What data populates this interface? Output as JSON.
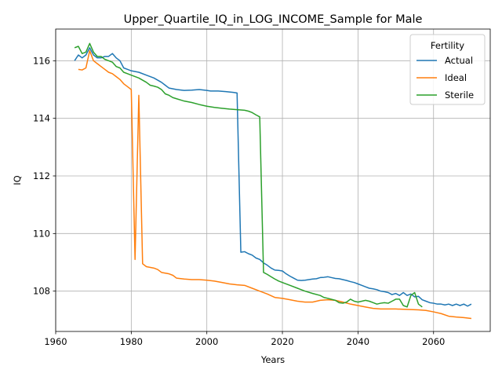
{
  "chart_data": {
    "type": "line",
    "title": "Upper_Quartile_IQ_in_LOG_INCOME_Sample for Male",
    "xlabel": "Years",
    "ylabel": "IQ",
    "xlim": [
      1960,
      2075
    ],
    "ylim": [
      106.6,
      117.1
    ],
    "xticks": [
      1960,
      1980,
      2000,
      2020,
      2040,
      2060
    ],
    "yticks": [
      108,
      110,
      112,
      114,
      116
    ],
    "grid": true,
    "legend": {
      "title": "Fertility",
      "placement": "top-right"
    },
    "series": [
      {
        "name": "Actual",
        "color": "#1f77b4",
        "points": [
          [
            1965,
            116.0
          ],
          [
            1966,
            116.2
          ],
          [
            1967,
            116.1
          ],
          [
            1968,
            116.2
          ],
          [
            1969,
            116.45
          ],
          [
            1970,
            116.2
          ],
          [
            1971,
            116.1
          ],
          [
            1972,
            116.1
          ],
          [
            1973,
            116.15
          ],
          [
            1974,
            116.15
          ],
          [
            1975,
            116.25
          ],
          [
            1976,
            116.1
          ],
          [
            1977,
            116.0
          ],
          [
            1978,
            115.75
          ],
          [
            1979,
            115.7
          ],
          [
            1980,
            115.65
          ],
          [
            1982,
            115.6
          ],
          [
            1984,
            115.5
          ],
          [
            1986,
            115.4
          ],
          [
            1988,
            115.25
          ],
          [
            1989,
            115.15
          ],
          [
            1990,
            115.05
          ],
          [
            1992,
            115.0
          ],
          [
            1994,
            114.97
          ],
          [
            1996,
            114.98
          ],
          [
            1998,
            115.0
          ],
          [
            2000,
            114.97
          ],
          [
            2001,
            114.95
          ],
          [
            2003,
            114.95
          ],
          [
            2005,
            114.93
          ],
          [
            2007,
            114.9
          ],
          [
            2008,
            114.88
          ],
          [
            2009,
            109.35
          ],
          [
            2010,
            109.37
          ],
          [
            2011,
            109.3
          ],
          [
            2012,
            109.25
          ],
          [
            2013,
            109.15
          ],
          [
            2014,
            109.1
          ],
          [
            2015,
            108.98
          ],
          [
            2016,
            108.9
          ],
          [
            2017,
            108.8
          ],
          [
            2018,
            108.73
          ],
          [
            2019,
            108.72
          ],
          [
            2020,
            108.7
          ],
          [
            2021,
            108.6
          ],
          [
            2022,
            108.52
          ],
          [
            2023,
            108.45
          ],
          [
            2024,
            108.38
          ],
          [
            2025,
            108.37
          ],
          [
            2026,
            108.38
          ],
          [
            2027,
            108.4
          ],
          [
            2028,
            108.42
          ],
          [
            2029,
            108.43
          ],
          [
            2030,
            108.47
          ],
          [
            2031,
            108.48
          ],
          [
            2032,
            108.5
          ],
          [
            2033,
            108.47
          ],
          [
            2034,
            108.44
          ],
          [
            2035,
            108.43
          ],
          [
            2036,
            108.4
          ],
          [
            2037,
            108.37
          ],
          [
            2038,
            108.33
          ],
          [
            2039,
            108.3
          ],
          [
            2040,
            108.25
          ],
          [
            2041,
            108.2
          ],
          [
            2042,
            108.15
          ],
          [
            2043,
            108.1
          ],
          [
            2044,
            108.08
          ],
          [
            2045,
            108.05
          ],
          [
            2046,
            108.0
          ],
          [
            2047,
            107.98
          ],
          [
            2048,
            107.95
          ],
          [
            2049,
            107.88
          ],
          [
            2050,
            107.92
          ],
          [
            2051,
            107.85
          ],
          [
            2052,
            107.95
          ],
          [
            2053,
            107.85
          ],
          [
            2054,
            107.9
          ],
          [
            2055,
            107.8
          ],
          [
            2056,
            107.82
          ],
          [
            2057,
            107.7
          ],
          [
            2058,
            107.65
          ],
          [
            2059,
            107.6
          ],
          [
            2060,
            107.58
          ],
          [
            2061,
            107.55
          ],
          [
            2062,
            107.55
          ],
          [
            2063,
            107.52
          ],
          [
            2064,
            107.55
          ],
          [
            2065,
            107.5
          ],
          [
            2066,
            107.55
          ],
          [
            2067,
            107.5
          ],
          [
            2068,
            107.55
          ],
          [
            2069,
            107.48
          ],
          [
            2070,
            107.55
          ]
        ]
      },
      {
        "name": "Ideal",
        "color": "#ff7f0e",
        "points": [
          [
            1966,
            115.7
          ],
          [
            1967,
            115.68
          ],
          [
            1968,
            115.75
          ],
          [
            1969,
            116.35
          ],
          [
            1970,
            116.0
          ],
          [
            1971,
            115.9
          ],
          [
            1972,
            115.8
          ],
          [
            1973,
            115.7
          ],
          [
            1974,
            115.6
          ],
          [
            1975,
            115.55
          ],
          [
            1976,
            115.45
          ],
          [
            1977,
            115.35
          ],
          [
            1978,
            115.2
          ],
          [
            1979,
            115.1
          ],
          [
            1980,
            115.0
          ],
          [
            1981,
            109.1
          ],
          [
            1982,
            114.8
          ],
          [
            1983,
            108.95
          ],
          [
            1984,
            108.85
          ],
          [
            1986,
            108.8
          ],
          [
            1987,
            108.75
          ],
          [
            1988,
            108.65
          ],
          [
            1990,
            108.6
          ],
          [
            1991,
            108.55
          ],
          [
            1992,
            108.45
          ],
          [
            1994,
            108.42
          ],
          [
            1996,
            108.4
          ],
          [
            1998,
            108.4
          ],
          [
            2000,
            108.38
          ],
          [
            2002,
            108.35
          ],
          [
            2004,
            108.3
          ],
          [
            2006,
            108.25
          ],
          [
            2008,
            108.22
          ],
          [
            2010,
            108.2
          ],
          [
            2012,
            108.1
          ],
          [
            2014,
            108.0
          ],
          [
            2016,
            107.9
          ],
          [
            2018,
            107.78
          ],
          [
            2020,
            107.75
          ],
          [
            2022,
            107.7
          ],
          [
            2024,
            107.65
          ],
          [
            2026,
            107.62
          ],
          [
            2028,
            107.62
          ],
          [
            2030,
            107.68
          ],
          [
            2032,
            107.7
          ],
          [
            2034,
            107.68
          ],
          [
            2036,
            107.62
          ],
          [
            2038,
            107.55
          ],
          [
            2040,
            107.5
          ],
          [
            2042,
            107.45
          ],
          [
            2044,
            107.4
          ],
          [
            2046,
            107.38
          ],
          [
            2048,
            107.38
          ],
          [
            2050,
            107.38
          ],
          [
            2052,
            107.37
          ],
          [
            2054,
            107.36
          ],
          [
            2056,
            107.35
          ],
          [
            2058,
            107.33
          ],
          [
            2060,
            107.28
          ],
          [
            2062,
            107.22
          ],
          [
            2064,
            107.13
          ],
          [
            2066,
            107.1
          ],
          [
            2068,
            107.08
          ],
          [
            2070,
            107.05
          ]
        ]
      },
      {
        "name": "Sterile",
        "color": "#2ca02c",
        "points": [
          [
            1965,
            116.45
          ],
          [
            1966,
            116.5
          ],
          [
            1967,
            116.25
          ],
          [
            1968,
            116.3
          ],
          [
            1969,
            116.6
          ],
          [
            1970,
            116.3
          ],
          [
            1971,
            116.15
          ],
          [
            1972,
            116.15
          ],
          [
            1973,
            116.05
          ],
          [
            1974,
            116.0
          ],
          [
            1975,
            115.95
          ],
          [
            1976,
            115.8
          ],
          [
            1977,
            115.75
          ],
          [
            1978,
            115.6
          ],
          [
            1979,
            115.55
          ],
          [
            1980,
            115.5
          ],
          [
            1982,
            115.4
          ],
          [
            1984,
            115.25
          ],
          [
            1985,
            115.15
          ],
          [
            1986,
            115.12
          ],
          [
            1987,
            115.08
          ],
          [
            1988,
            115.0
          ],
          [
            1989,
            114.85
          ],
          [
            1990,
            114.8
          ],
          [
            1991,
            114.72
          ],
          [
            1992,
            114.68
          ],
          [
            1994,
            114.6
          ],
          [
            1996,
            114.55
          ],
          [
            1998,
            114.48
          ],
          [
            2000,
            114.42
          ],
          [
            2002,
            114.38
          ],
          [
            2004,
            114.35
          ],
          [
            2006,
            114.32
          ],
          [
            2008,
            114.3
          ],
          [
            2010,
            114.28
          ],
          [
            2011,
            114.25
          ],
          [
            2012,
            114.2
          ],
          [
            2013,
            114.12
          ],
          [
            2014,
            114.05
          ],
          [
            2015,
            108.65
          ],
          [
            2016,
            108.58
          ],
          [
            2017,
            108.5
          ],
          [
            2018,
            108.42
          ],
          [
            2019,
            108.35
          ],
          [
            2020,
            108.3
          ],
          [
            2022,
            108.2
          ],
          [
            2024,
            108.1
          ],
          [
            2026,
            108.0
          ],
          [
            2028,
            107.92
          ],
          [
            2030,
            107.85
          ],
          [
            2031,
            107.78
          ],
          [
            2032,
            107.75
          ],
          [
            2034,
            107.68
          ],
          [
            2035,
            107.6
          ],
          [
            2036,
            107.58
          ],
          [
            2037,
            107.62
          ],
          [
            2038,
            107.72
          ],
          [
            2039,
            107.65
          ],
          [
            2040,
            107.62
          ],
          [
            2041,
            107.65
          ],
          [
            2042,
            107.68
          ],
          [
            2043,
            107.65
          ],
          [
            2044,
            107.6
          ],
          [
            2045,
            107.55
          ],
          [
            2046,
            107.58
          ],
          [
            2047,
            107.6
          ],
          [
            2048,
            107.58
          ],
          [
            2049,
            107.65
          ],
          [
            2050,
            107.72
          ],
          [
            2051,
            107.72
          ],
          [
            2052,
            107.5
          ],
          [
            2053,
            107.45
          ],
          [
            2054,
            107.85
          ],
          [
            2055,
            107.95
          ],
          [
            2056,
            107.55
          ],
          [
            2057,
            107.45
          ]
        ]
      }
    ]
  }
}
